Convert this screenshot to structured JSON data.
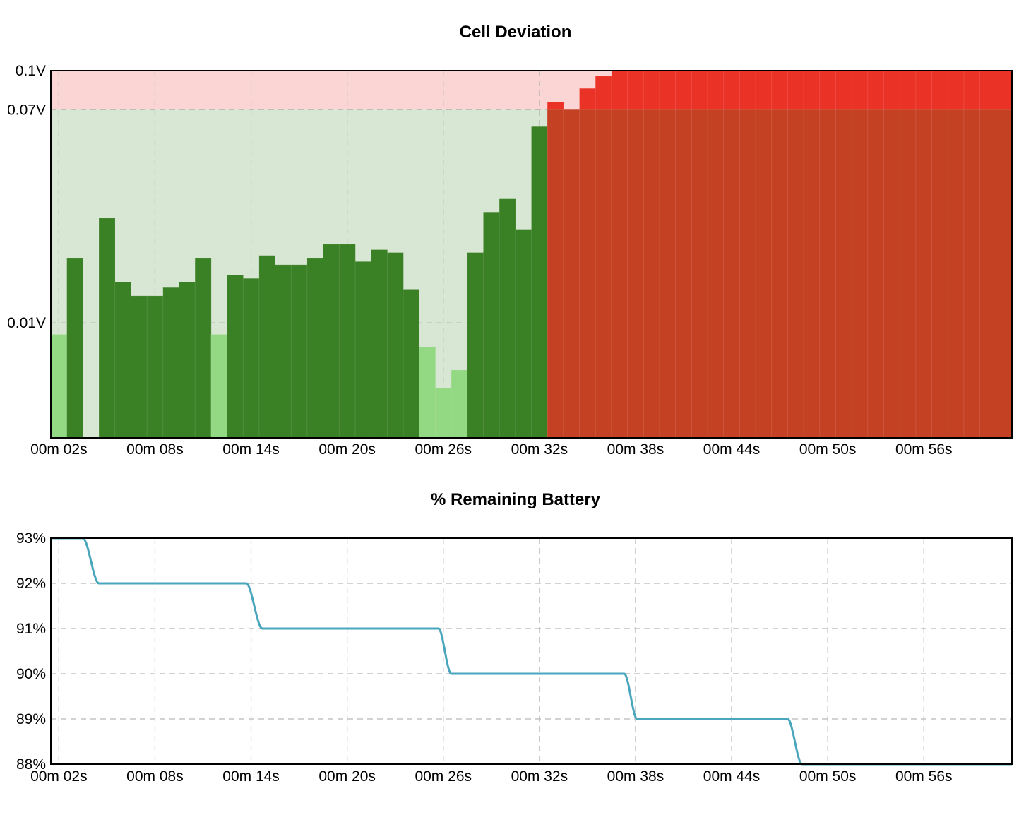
{
  "colors": {
    "zone_warn": "#fbd5d3",
    "zone_ok": "#d8e6d4",
    "bar_dark_green": "#3a8025",
    "bar_light_green": "#93d882",
    "bar_red": "#eb3226",
    "bar_overlap": "#c44123",
    "battery_line": "#4aa6bd"
  },
  "chart_data": [
    {
      "type": "bar",
      "title": "Cell Deviation",
      "x_tick_labels": [
        "00m 02s",
        "00m 08s",
        "00m 14s",
        "00m 20s",
        "00m 26s",
        "00m 32s",
        "00m 38s",
        "00m 44s",
        "00m 50s",
        "00m 56s"
      ],
      "y_tick_labels": [
        "0.1V",
        "0.07V",
        "0.01V"
      ],
      "y_ticks": [
        0.1,
        0.07,
        0.01
      ],
      "y_scale": "log",
      "ylim": [
        0.0035,
        0.1
      ],
      "xlim": [
        1.5,
        61.5
      ],
      "threshold": 0.07,
      "grid": true,
      "x": [
        2,
        3,
        4,
        5,
        6,
        7,
        8,
        9,
        10,
        11,
        12,
        13,
        14,
        15,
        16,
        17,
        18,
        19,
        20,
        21,
        22,
        23,
        24,
        25,
        26,
        27,
        28,
        29,
        30,
        31,
        32,
        33,
        34,
        35,
        36,
        37,
        38,
        39,
        40,
        41,
        42,
        43,
        44,
        45,
        46,
        47,
        48,
        49,
        50,
        51,
        52,
        53,
        54,
        55,
        56,
        57,
        58,
        59,
        60,
        61
      ],
      "values": [
        0.009,
        0.018,
        0.0035,
        0.026,
        0.0145,
        0.0128,
        0.0128,
        0.0138,
        0.0145,
        0.018,
        0.009,
        0.0155,
        0.015,
        0.0185,
        0.017,
        0.017,
        0.018,
        0.0205,
        0.0205,
        0.0175,
        0.0195,
        0.019,
        0.0136,
        0.008,
        0.0055,
        0.0065,
        0.019,
        0.0275,
        0.031,
        0.0235,
        0.06,
        0.075,
        0.07,
        0.085,
        0.095,
        0.1,
        0.1,
        0.1,
        0.1,
        0.1,
        0.1,
        0.1,
        0.1,
        0.1,
        0.1,
        0.1,
        0.1,
        0.1,
        0.1,
        0.1,
        0.1,
        0.1,
        0.1,
        0.1,
        0.1,
        0.1,
        0.1,
        0.1,
        0.1,
        0.1
      ]
    },
    {
      "type": "line",
      "title": "% Remaining Battery",
      "x_tick_labels": [
        "00m 02s",
        "00m 08s",
        "00m 14s",
        "00m 20s",
        "00m 26s",
        "00m 32s",
        "00m 38s",
        "00m 44s",
        "00m 50s",
        "00m 56s"
      ],
      "y_tick_labels": [
        "93%",
        "92%",
        "91%",
        "90%",
        "89%",
        "88%"
      ],
      "y_ticks": [
        93,
        92,
        91,
        90,
        89,
        88
      ],
      "ylim": [
        88,
        93
      ],
      "xlim": [
        1.5,
        61.5
      ],
      "grid": true,
      "x": [
        1.5,
        3.5,
        4.5,
        13.7,
        14.7,
        25.7,
        26.5,
        37.3,
        38.1,
        47.5,
        48.4,
        61.5
      ],
      "values": [
        93,
        93,
        92,
        92,
        91,
        91,
        90,
        90,
        89,
        89,
        88,
        88
      ]
    }
  ]
}
